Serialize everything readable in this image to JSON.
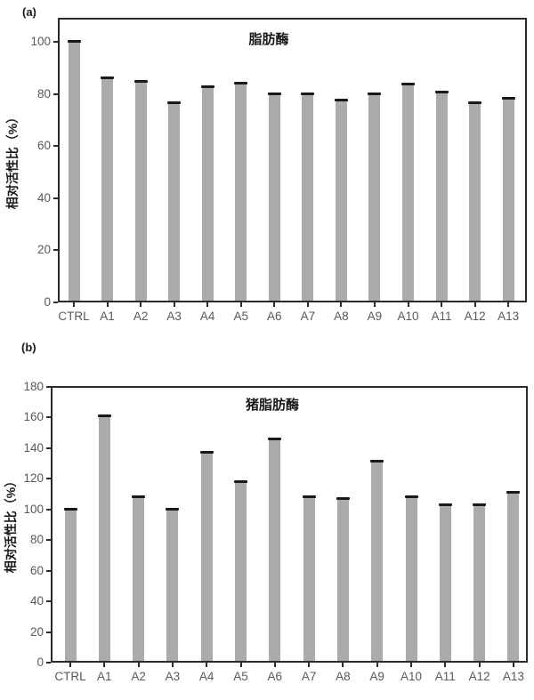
{
  "chart_data": [
    {
      "type": "bar",
      "panel_label": "(a)",
      "title": "脂肪酶",
      "ylabel": "相对活性比（%）",
      "xlabel": "",
      "categories": [
        "CTRL",
        "A1",
        "A2",
        "A3",
        "A4",
        "A5",
        "A6",
        "A7",
        "A8",
        "A9",
        "A10",
        "A11",
        "A12",
        "A13"
      ],
      "values": [
        100,
        86,
        84.5,
        76.5,
        82.5,
        84,
        80,
        80,
        77.5,
        80,
        83.5,
        80.5,
        76.5,
        78
      ],
      "yticks": [
        0,
        20,
        40,
        60,
        80,
        100
      ],
      "ylim": [
        0,
        109
      ],
      "grid": false,
      "legend": "none",
      "error_caps": true,
      "bar_color": "#ababab",
      "error_cap_color": "#1a1a1a",
      "axis_color": "#2b2b2b",
      "tick_label_color": "#595959"
    },
    {
      "type": "bar",
      "panel_label": "(b)",
      "title": "猪脂肪酶",
      "ylabel": "相对活性比（%）",
      "xlabel": "",
      "categories": [
        "CTRL",
        "A1",
        "A2",
        "A3",
        "A4",
        "A5",
        "A6",
        "A7",
        "A8",
        "A9",
        "A10",
        "A11",
        "A12",
        "A13"
      ],
      "values": [
        100,
        161,
        108,
        100,
        137,
        118,
        146,
        108,
        107,
        131,
        108,
        103,
        103,
        111
      ],
      "yticks": [
        0,
        20,
        40,
        60,
        80,
        100,
        120,
        140,
        160,
        180
      ],
      "ylim": [
        0,
        180
      ],
      "grid": false,
      "legend": "none",
      "error_caps": true,
      "bar_color": "#ababab",
      "error_cap_color": "#1a1a1a",
      "axis_color": "#2b2b2b",
      "tick_label_color": "#595959"
    }
  ]
}
